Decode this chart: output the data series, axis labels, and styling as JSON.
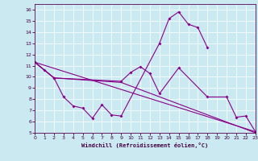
{
  "xlabel": "Windchill (Refroidissement éolien,°C)",
  "xlim": [
    0,
    23
  ],
  "ylim": [
    5,
    16.5
  ],
  "xticks": [
    0,
    1,
    2,
    3,
    4,
    5,
    6,
    7,
    8,
    9,
    10,
    11,
    12,
    13,
    14,
    15,
    16,
    17,
    18,
    19,
    20,
    21,
    22,
    23
  ],
  "yticks": [
    5,
    6,
    7,
    8,
    9,
    10,
    11,
    12,
    13,
    14,
    15,
    16
  ],
  "bg_color": "#cbe9f0",
  "line_color": "#880088",
  "line1_x": [
    0,
    1,
    2,
    3,
    4,
    5,
    6,
    7,
    8,
    9,
    13,
    14,
    15,
    16,
    17,
    18
  ],
  "line1_y": [
    11.3,
    10.6,
    9.9,
    8.2,
    7.4,
    7.2,
    6.3,
    7.5,
    6.6,
    6.5,
    13.0,
    15.2,
    15.8,
    14.7,
    14.4,
    12.6
  ],
  "line2_x": [
    0,
    2,
    9,
    10,
    11,
    12,
    13,
    15,
    18,
    20,
    21,
    22,
    23
  ],
  "line2_y": [
    11.3,
    9.9,
    9.6,
    10.4,
    10.9,
    10.3,
    8.5,
    10.8,
    8.2,
    8.2,
    6.4,
    6.5,
    5.1
  ],
  "line3_x": [
    0,
    23
  ],
  "line3_y": [
    11.3,
    5.1
  ],
  "line4_x": [
    0,
    2,
    9,
    23
  ],
  "line4_y": [
    11.3,
    9.9,
    9.5,
    5.0
  ]
}
